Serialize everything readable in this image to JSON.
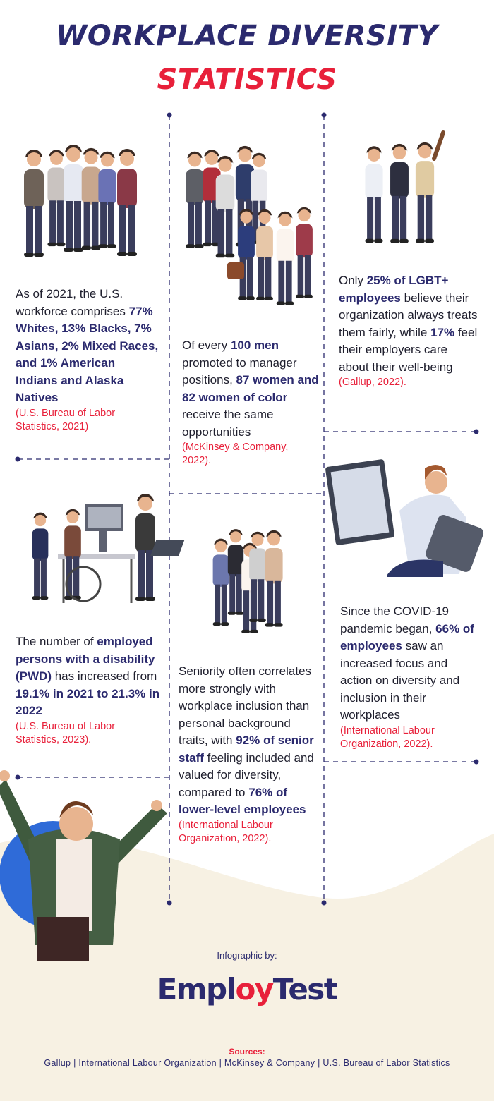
{
  "title": {
    "line1": "WORKPLACE DIVERSITY",
    "line2": "STATISTICS"
  },
  "facts": [
    {
      "runs": [
        {
          "text": "As of 2021, the U.S. workforce comprises ",
          "bold": false
        },
        {
          "text": "77% Whites, 13% Blacks, 7% Asians, 2% Mixed Races, and 1% American Indians and Alaska Natives",
          "bold": true
        }
      ],
      "source": "(U.S. Bureau of Labor Statistics, 2021)"
    },
    {
      "runs": [
        {
          "text": "Of every ",
          "bold": false
        },
        {
          "text": "100 men",
          "bold": true
        },
        {
          "text": " promoted to manager positions, ",
          "bold": false
        },
        {
          "text": "87 women and 82 women of color",
          "bold": true
        },
        {
          "text": " receive the same opportunities",
          "bold": false
        }
      ],
      "source": "(McKinsey & Company, 2022)."
    },
    {
      "runs": [
        {
          "text": "Only ",
          "bold": false
        },
        {
          "text": "25% of LGBT+ employees",
          "bold": true
        },
        {
          "text": " believe their organization always treats them fairly, while ",
          "bold": false
        },
        {
          "text": "17%",
          "bold": true
        },
        {
          "text": " feel their employers care about their well-being",
          "bold": false
        }
      ],
      "source": "(Gallup, 2022)."
    },
    {
      "runs": [
        {
          "text": "The number of ",
          "bold": false
        },
        {
          "text": "employed persons with a disability (PWD)",
          "bold": true
        },
        {
          "text": " has increased from ",
          "bold": false
        },
        {
          "text": "19.1% in 2021 to 21.3% in 2022",
          "bold": true
        }
      ],
      "source": "(U.S. Bureau of Labor Statistics, 2023)."
    },
    {
      "runs": [
        {
          "text": "Seniority often correlates more strongly with workplace inclusion than personal background traits, with ",
          "bold": false
        },
        {
          "text": "92% of senior staff",
          "bold": true
        },
        {
          "text": " feeling included and valued for diversity, compared to ",
          "bold": false
        },
        {
          "text": "76% of lower-level employees",
          "bold": true
        }
      ],
      "source": "(International Labour Organization, 2022)."
    },
    {
      "runs": [
        {
          "text": "Since the COVID-19 pandemic began, ",
          "bold": false
        },
        {
          "text": "66% of employees",
          "bold": true
        },
        {
          "text": " saw an increased focus and action on diversity and inclusion in their workplaces",
          "bold": false
        }
      ],
      "source": "(International Labour Organization, 2022)."
    }
  ],
  "credit": {
    "label": "Infographic by:",
    "logo": {
      "part1": "Empl",
      "part2": "oy",
      "part3": "Test"
    }
  },
  "sources": {
    "label": "Sources:",
    "list": "Gallup | International Labour Organization | McKinsey & Company | U.S. Bureau of Labor Statistics"
  }
}
